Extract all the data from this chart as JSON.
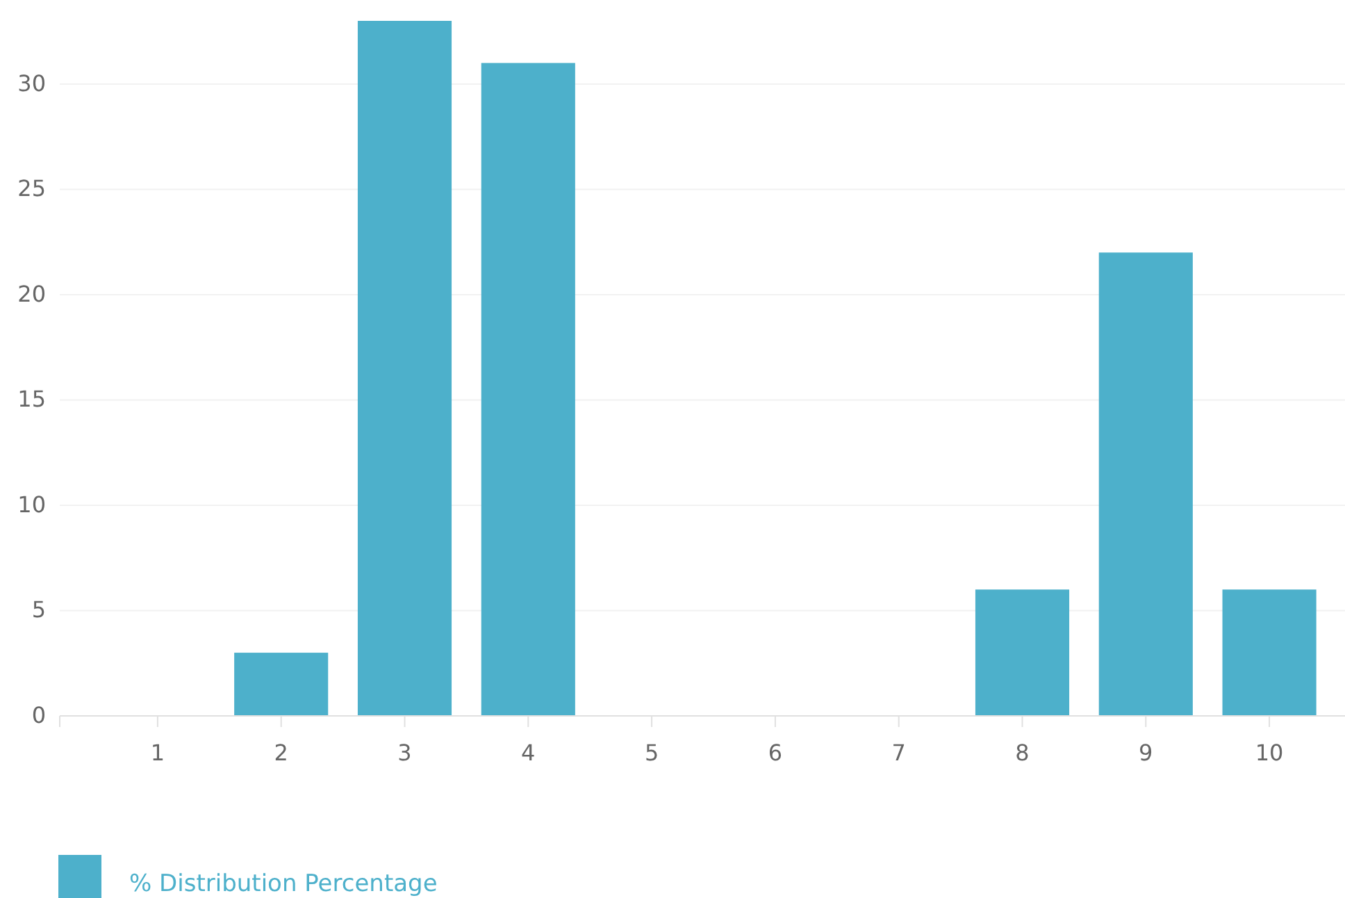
{
  "chart_data": {
    "type": "bar",
    "categories": [
      "1",
      "2",
      "3",
      "4",
      "5",
      "6",
      "7",
      "8",
      "9",
      "10"
    ],
    "series": [
      {
        "name": "% Distribution Percentage",
        "color": "#4db0cb",
        "values": [
          0,
          3,
          33,
          31,
          0,
          0,
          0,
          6,
          22,
          6
        ]
      }
    ],
    "ylim": [
      0,
      33
    ],
    "yticks": [
      0,
      5,
      10,
      15,
      20,
      25,
      30
    ],
    "grid": "y",
    "legend": "bottom left"
  }
}
